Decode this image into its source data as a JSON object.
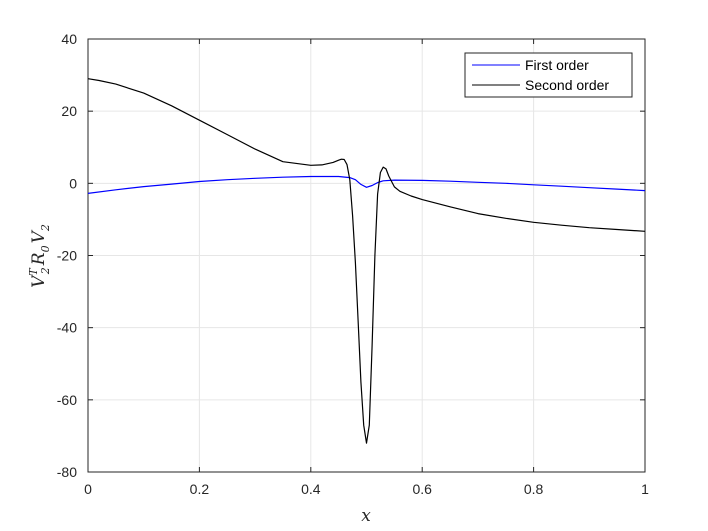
{
  "chart_data": {
    "type": "line",
    "title": "",
    "xlabel": "x",
    "ylabel_parts": {
      "v1": "V",
      "sup": "T",
      "sub1": "2",
      "r": "R",
      "sub2": "0",
      "v2": "V",
      "sub3": "2"
    },
    "xlim": [
      0,
      1
    ],
    "ylim": [
      -80,
      40
    ],
    "x_ticks": [
      "0",
      "0.2",
      "0.4",
      "0.6",
      "0.8",
      "1"
    ],
    "y_ticks": [
      "40",
      "20",
      "0",
      "-20",
      "-40",
      "-60",
      "-80"
    ],
    "grid": true,
    "legend_position": "top-right",
    "series": [
      {
        "name": "First order",
        "color": "#0000ff",
        "x": [
          0,
          0.05,
          0.1,
          0.15,
          0.2,
          0.25,
          0.3,
          0.35,
          0.4,
          0.45,
          0.47,
          0.48,
          0.49,
          0.5,
          0.51,
          0.52,
          0.53,
          0.55,
          0.6,
          0.65,
          0.7,
          0.75,
          0.8,
          0.85,
          0.9,
          0.95,
          1.0
        ],
        "y": [
          -2.8,
          -1.8,
          -0.9,
          -0.2,
          0.5,
          1.0,
          1.4,
          1.7,
          1.9,
          1.9,
          1.6,
          1.0,
          -0.3,
          -1.1,
          -0.6,
          0.2,
          0.7,
          0.9,
          0.8,
          0.6,
          0.3,
          0.0,
          -0.4,
          -0.8,
          -1.2,
          -1.6,
          -2.0
        ]
      },
      {
        "name": "Second order",
        "color": "#000000",
        "x": [
          0,
          0.02,
          0.05,
          0.1,
          0.15,
          0.2,
          0.25,
          0.3,
          0.35,
          0.4,
          0.42,
          0.44,
          0.45,
          0.455,
          0.46,
          0.465,
          0.47,
          0.475,
          0.48,
          0.485,
          0.49,
          0.495,
          0.5,
          0.505,
          0.51,
          0.515,
          0.52,
          0.525,
          0.53,
          0.535,
          0.54,
          0.545,
          0.55,
          0.56,
          0.58,
          0.6,
          0.65,
          0.7,
          0.75,
          0.8,
          0.85,
          0.9,
          0.95,
          1.0
        ],
        "y": [
          29.0,
          28.5,
          27.5,
          25.0,
          21.5,
          17.5,
          13.5,
          9.5,
          6.0,
          5.0,
          5.1,
          5.8,
          6.4,
          6.7,
          6.6,
          5.2,
          1.0,
          -9.0,
          -22.0,
          -38.0,
          -55.0,
          -67.0,
          -72.0,
          -67.0,
          -45.0,
          -20.0,
          -3.0,
          3.0,
          4.5,
          4.0,
          2.0,
          0.5,
          -1.0,
          -2.2,
          -3.5,
          -4.5,
          -6.5,
          -8.4,
          -9.7,
          -10.8,
          -11.6,
          -12.3,
          -12.8,
          -13.3
        ]
      }
    ]
  }
}
